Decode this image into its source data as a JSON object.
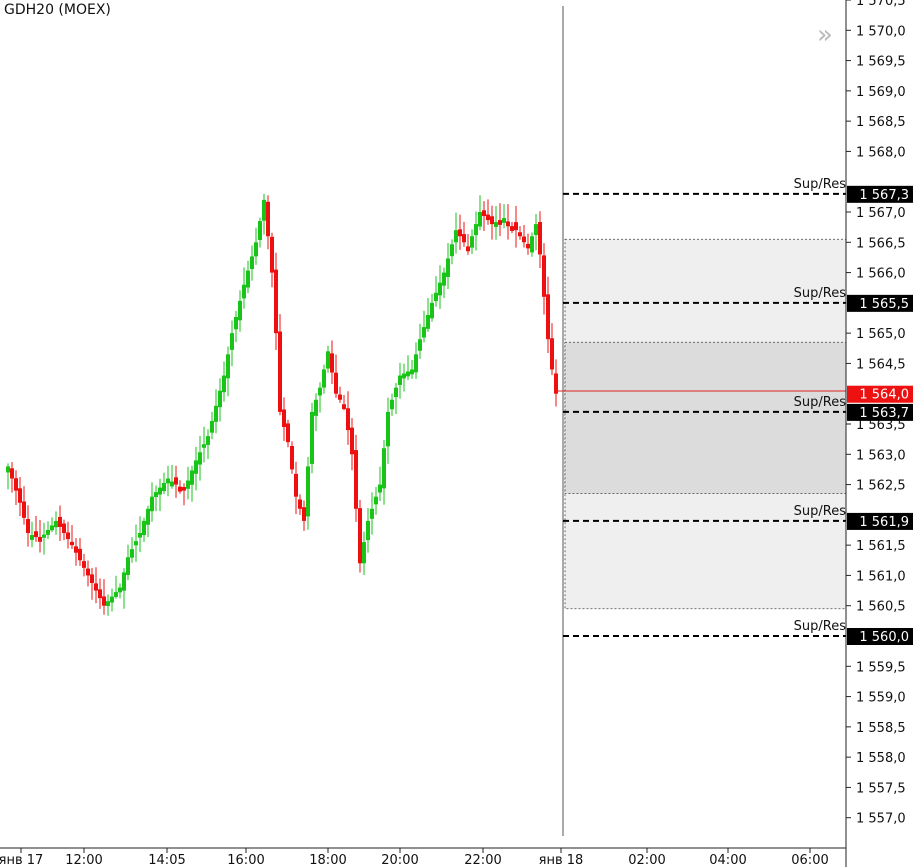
{
  "symbol": "GDH20 (MOEX)",
  "nav_icon": "double-chevron-right-icon",
  "colors": {
    "up": "#18c418",
    "down": "#ee1010",
    "level_bg": "#000000",
    "current_bg": "#ee1111",
    "zone_outer": "#efefef",
    "zone_inner": "#dcdcdc"
  },
  "chart_data": {
    "type": "candlestick",
    "ylim": [
      1556.5,
      1570.5
    ],
    "y_ticks": [
      "1 557,0",
      "1 557,5",
      "1 558,0",
      "1 558,5",
      "1 559,0",
      "1 559,5",
      "1 560,5",
      "1 561,0",
      "1 561,5",
      "1 562,5",
      "1 563,0",
      "1 563,5",
      "1 564,5",
      "1 565,0",
      "1 566,0",
      "1 566,5",
      "1 567,0",
      "1 568,0",
      "1 568,5",
      "1 569,0",
      "1 569,5",
      "1 570,0",
      "1 570,5"
    ],
    "x_labels": [
      "янв 17",
      "12:00",
      "14:05",
      "16:00",
      "18:00",
      "20:00",
      "22:00",
      "янв 18",
      "02:00",
      "04:00",
      "06:00"
    ],
    "current_price": "1 564,0",
    "levels": [
      {
        "label": "Sup/Res",
        "price": "1 567,3"
      },
      {
        "label": "Sup/Res",
        "price": "1 565,5"
      },
      {
        "label": "Sup/Res",
        "price": "1 563,7"
      },
      {
        "label": "Sup/Res",
        "price": "1 561,9"
      },
      {
        "label": "Sup/Res",
        "price": "1 560,0"
      }
    ],
    "zones": [
      {
        "top": 1566.55,
        "bottom": 1560.45,
        "kind": "outer"
      },
      {
        "top": 1564.85,
        "bottom": 1562.35,
        "kind": "inner"
      }
    ],
    "anchors": [
      [
        0,
        1562.8
      ],
      [
        3,
        1562.2
      ],
      [
        5,
        1561.7
      ],
      [
        8,
        1561.6
      ],
      [
        12,
        1561.9
      ],
      [
        16,
        1561.5
      ],
      [
        20,
        1561.0
      ],
      [
        24,
        1560.5
      ],
      [
        28,
        1560.8
      ],
      [
        30,
        1561.3
      ],
      [
        33,
        1561.7
      ],
      [
        36,
        1562.3
      ],
      [
        40,
        1562.6
      ],
      [
        44,
        1562.4
      ],
      [
        47,
        1562.9
      ],
      [
        50,
        1563.3
      ],
      [
        54,
        1564.3
      ],
      [
        56,
        1565.0
      ],
      [
        59,
        1565.8
      ],
      [
        62,
        1566.5
      ],
      [
        64,
        1567.2
      ],
      [
        66,
        1566.0
      ],
      [
        67,
        1565.0
      ],
      [
        68,
        1563.7
      ],
      [
        70,
        1563.2
      ],
      [
        72,
        1562.3
      ],
      [
        74,
        1561.9
      ],
      [
        76,
        1563.7
      ],
      [
        78,
        1564.1
      ],
      [
        80,
        1564.7
      ],
      [
        82,
        1564.0
      ],
      [
        84,
        1563.8
      ],
      [
        86,
        1563.0
      ],
      [
        88,
        1561.2
      ],
      [
        90,
        1561.9
      ],
      [
        93,
        1562.5
      ],
      [
        95,
        1563.7
      ],
      [
        98,
        1564.3
      ],
      [
        101,
        1564.4
      ],
      [
        103,
        1564.9
      ],
      [
        106,
        1565.5
      ],
      [
        109,
        1566.0
      ],
      [
        112,
        1566.7
      ],
      [
        115,
        1566.4
      ],
      [
        118,
        1567.0
      ],
      [
        121,
        1566.8
      ],
      [
        124,
        1566.9
      ],
      [
        127,
        1566.7
      ],
      [
        130,
        1566.4
      ],
      [
        132,
        1566.8
      ],
      [
        133,
        1566.3
      ],
      [
        134,
        1565.6
      ],
      [
        135,
        1564.9
      ],
      [
        136,
        1564.4
      ],
      [
        137,
        1564.0
      ]
    ]
  }
}
